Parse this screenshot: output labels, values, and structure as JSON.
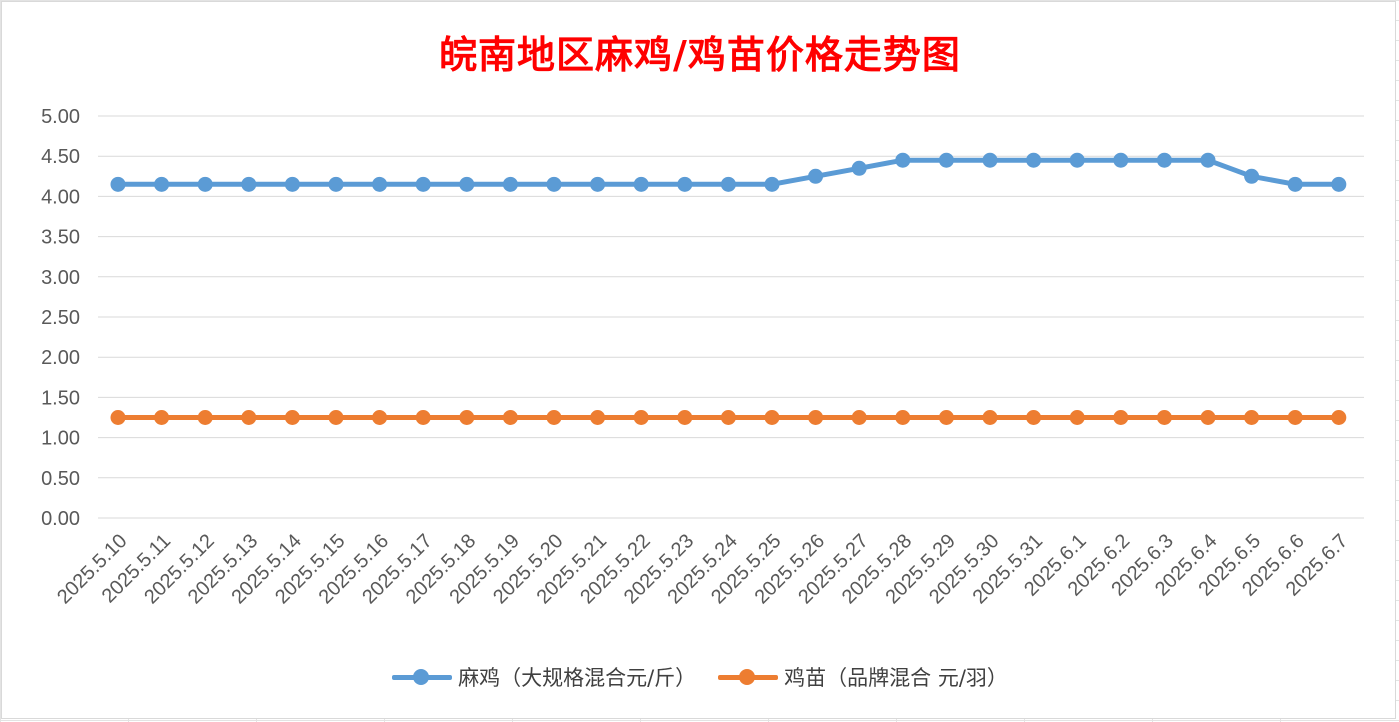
{
  "chart_data": {
    "type": "line",
    "title": "皖南地区麻鸡/鸡苗价格走势图",
    "xlabel": "",
    "ylabel": "",
    "ylim": [
      0,
      5
    ],
    "yticks": [
      "0.00",
      "0.50",
      "1.00",
      "1.50",
      "2.00",
      "2.50",
      "3.00",
      "3.50",
      "4.00",
      "4.50",
      "5.00"
    ],
    "grid": true,
    "legend_position": "bottom",
    "categories": [
      "2025.5.10",
      "2025.5.11",
      "2025.5.12",
      "2025.5.13",
      "2025.5.14",
      "2025.5.15",
      "2025.5.16",
      "2025.5.17",
      "2025.5.18",
      "2025.5.19",
      "2025.5.20",
      "2025.5.21",
      "2025.5.22",
      "2025.5.23",
      "2025.5.24",
      "2025.5.25",
      "2025.5.26",
      "2025.5.27",
      "2025.5.28",
      "2025.5.29",
      "2025.5.30",
      "2025.5.31",
      "2025.6.1",
      "2025.6.2",
      "2025.6.3",
      "2025.6.4",
      "2025.6.5",
      "2025.6.6",
      "2025.6.7"
    ],
    "series": [
      {
        "name": "麻鸡（大规格混合元/斤）",
        "color": "#5b9bd5",
        "values": [
          4.15,
          4.15,
          4.15,
          4.15,
          4.15,
          4.15,
          4.15,
          4.15,
          4.15,
          4.15,
          4.15,
          4.15,
          4.15,
          4.15,
          4.15,
          4.15,
          4.25,
          4.35,
          4.45,
          4.45,
          4.45,
          4.45,
          4.45,
          4.45,
          4.45,
          4.45,
          4.25,
          4.15,
          4.15
        ]
      },
      {
        "name": "鸡苗（品牌混合 元/羽）",
        "color": "#ed7d31",
        "values": [
          1.25,
          1.25,
          1.25,
          1.25,
          1.25,
          1.25,
          1.25,
          1.25,
          1.25,
          1.25,
          1.25,
          1.25,
          1.25,
          1.25,
          1.25,
          1.25,
          1.25,
          1.25,
          1.25,
          1.25,
          1.25,
          1.25,
          1.25,
          1.25,
          1.25,
          1.25,
          1.25,
          1.25,
          1.25
        ]
      }
    ]
  }
}
